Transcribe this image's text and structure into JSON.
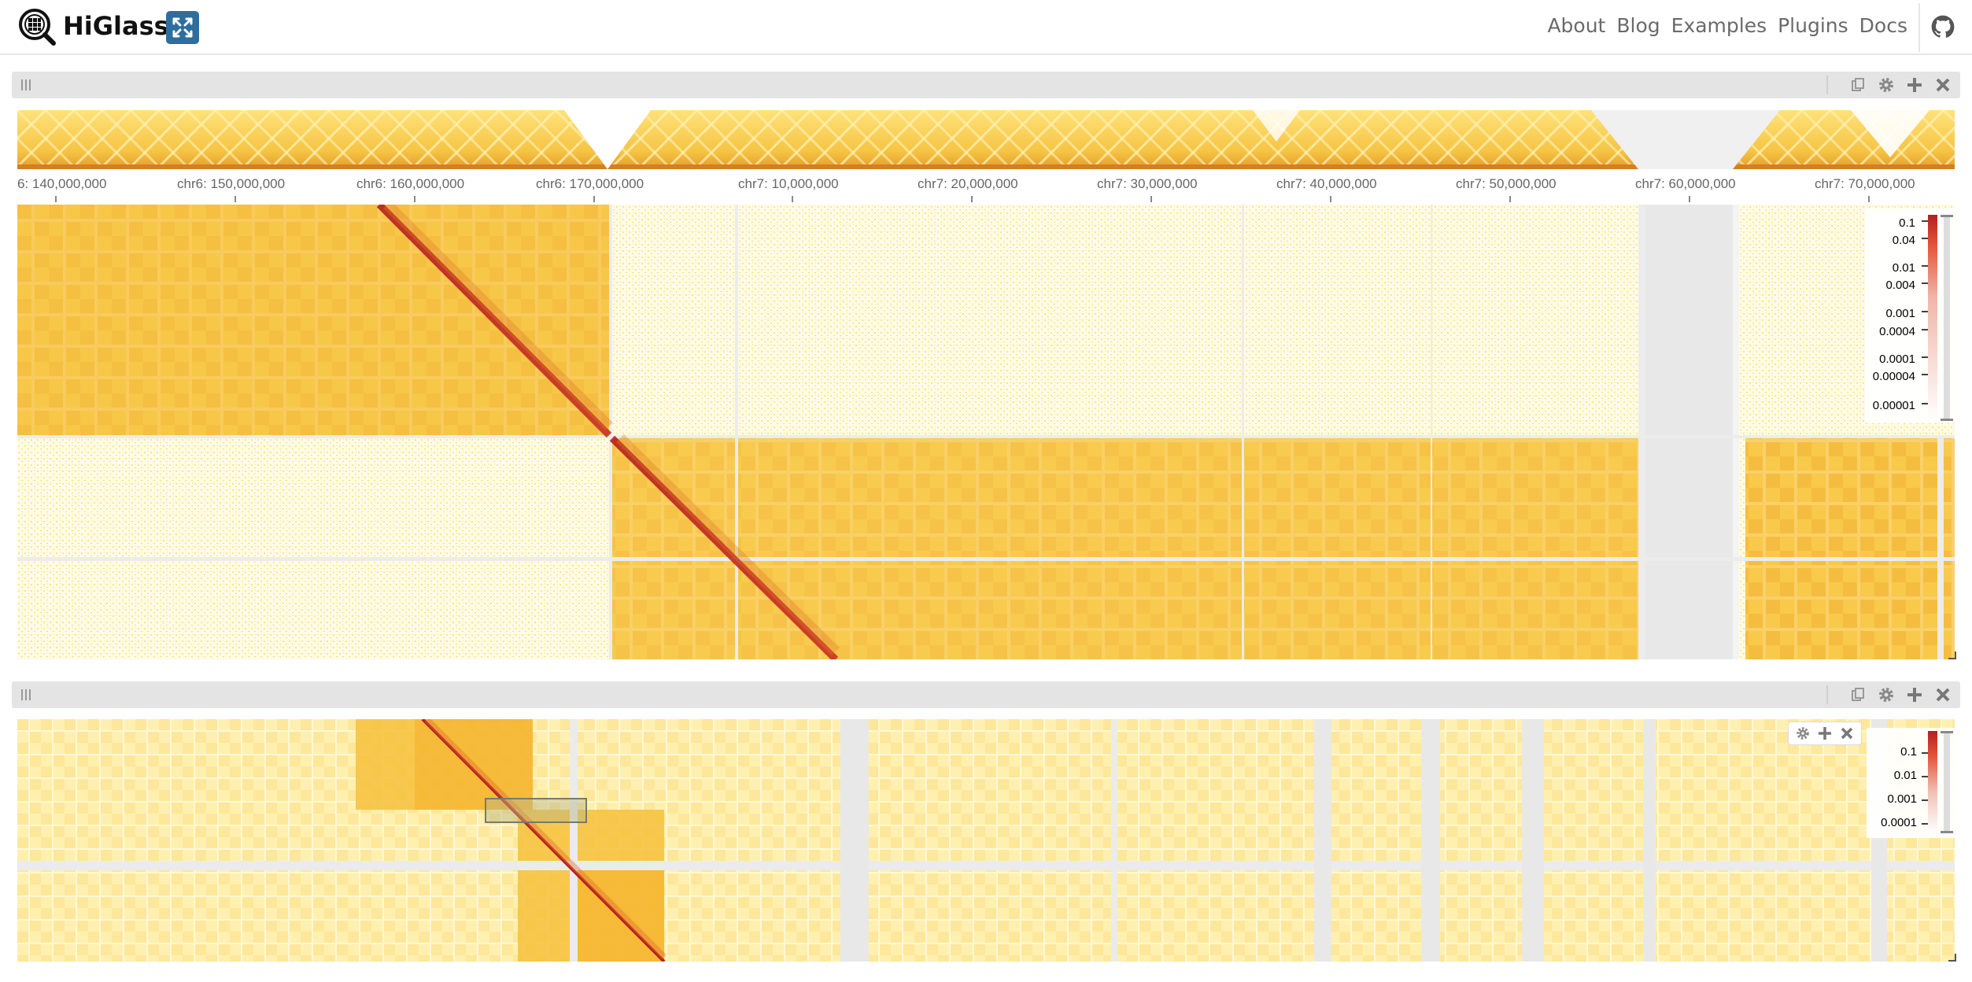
{
  "header": {
    "brand": "HiGlass",
    "nav": [
      "About",
      "Blog",
      "Examples",
      "Plugins",
      "Docs"
    ]
  },
  "top_view": {
    "axis_ticks": [
      "6: 140,000,000",
      "chr6: 150,000,000",
      "chr6: 160,000,000",
      "chr6: 170,000,000",
      "chr7: 10,000,000",
      "chr7: 20,000,000",
      "chr7: 30,000,000",
      "chr7: 40,000,000",
      "chr7: 50,000,000",
      "chr7: 60,000,000",
      "chr7: 70,000,000"
    ],
    "colorbar_labels": [
      "0.1",
      "0.04",
      "0.01",
      "0.004",
      "0.001",
      "0.0004",
      "0.0001",
      "0.00004",
      "0.00001"
    ]
  },
  "bottom_view": {
    "colorbar_labels": [
      "0.1",
      "0.01",
      "0.001",
      "0.0001"
    ]
  },
  "colors": {
    "heat_low": "#fff8d8",
    "heat_mid": "#f7c948",
    "heat_high": "#b51f1f",
    "header_bar": "#e4e4e4",
    "fullscreen_button": "#2e6e9e"
  }
}
